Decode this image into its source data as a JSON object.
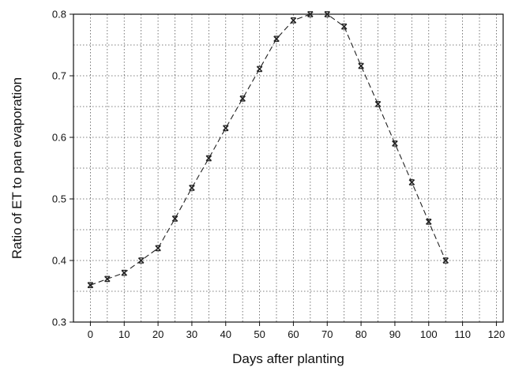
{
  "chart_data": {
    "type": "line",
    "xlabel": "Days after planting",
    "ylabel": "Ratio of ET to pan evaporation",
    "xlim": [
      -5,
      122
    ],
    "ylim": [
      0.3,
      0.8
    ],
    "xticks": [
      0,
      10,
      20,
      30,
      40,
      50,
      60,
      70,
      80,
      90,
      100,
      110,
      120
    ],
    "yticks": [
      0.3,
      0.4,
      0.5,
      0.6,
      0.7,
      0.8
    ],
    "x_minor_grid": [
      5,
      15,
      25,
      35,
      45,
      55,
      65,
      75,
      85,
      95,
      105,
      115
    ],
    "y_minor_grid": [
      0.35,
      0.45,
      0.55,
      0.65,
      0.75
    ],
    "grid": true,
    "series": [
      {
        "x": [
          0,
          5,
          10,
          15,
          20,
          25,
          30,
          35,
          40,
          45,
          50,
          55,
          60,
          65,
          70,
          75,
          80,
          85,
          90,
          95,
          100,
          105
        ],
        "y": [
          0.36,
          0.37,
          0.38,
          0.4,
          0.42,
          0.468,
          0.518,
          0.566,
          0.615,
          0.663,
          0.711,
          0.76,
          0.79,
          0.8,
          0.8,
          0.78,
          0.716,
          0.654,
          0.59,
          0.527,
          0.463,
          0.4
        ],
        "marker": "x",
        "line_style": "dashed",
        "color": "#222222"
      }
    ]
  }
}
